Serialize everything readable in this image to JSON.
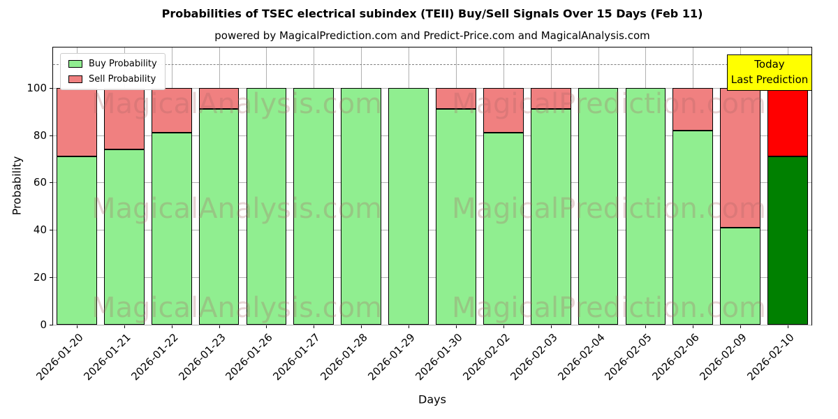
{
  "title": "Probabilities of TSEC electrical subindex (TEII) Buy/Sell Signals Over 15 Days (Feb 11)",
  "subtitle": "powered by MagicalPrediction.com and Predict-Price.com and MagicalAnalysis.com",
  "legend": [
    {
      "label": "Buy Probability",
      "color": "#90EE90"
    },
    {
      "label": "Sell Probability",
      "color": "#F08080"
    }
  ],
  "annotation": {
    "line1": "Today",
    "line2": "Last Prediction",
    "bg": "#FFFF00"
  },
  "watermarks": [
    "MagicalAnalysis.com",
    "MagicalPrediction.com"
  ],
  "chart_data": {
    "type": "bar",
    "stacked": true,
    "title": "Probabilities of TSEC electrical subindex (TEII) Buy/Sell Signals Over 15 Days (Feb 11)",
    "categories": [
      "2026-01-20",
      "2026-01-21",
      "2026-01-22",
      "2026-01-23",
      "2026-01-26",
      "2026-01-27",
      "2026-01-28",
      "2026-01-29",
      "2026-01-30",
      "2026-02-02",
      "2026-02-03",
      "2026-02-04",
      "2026-02-05",
      "2026-02-06",
      "2026-02-09",
      "2026-02-10"
    ],
    "series": [
      {
        "name": "Buy Probability",
        "color": "#90EE90",
        "values": [
          71,
          74,
          81,
          91,
          100,
          100,
          100,
          100,
          91,
          81,
          91,
          100,
          100,
          82,
          41,
          71
        ]
      },
      {
        "name": "Sell Probability",
        "color": "#F08080",
        "values": [
          29,
          26,
          19,
          9,
          0,
          0,
          0,
          0,
          9,
          19,
          9,
          0,
          0,
          18,
          59,
          29
        ]
      }
    ],
    "today_colors": {
      "buy": "#008000",
      "sell": "#FF0000"
    },
    "xlabel": "Days",
    "ylabel": "Probability",
    "yticks": [
      0,
      20,
      40,
      60,
      80,
      100
    ],
    "ylim": [
      0,
      117
    ],
    "dashed_line_y": 110,
    "grid": true,
    "legend_position": "upper left"
  }
}
